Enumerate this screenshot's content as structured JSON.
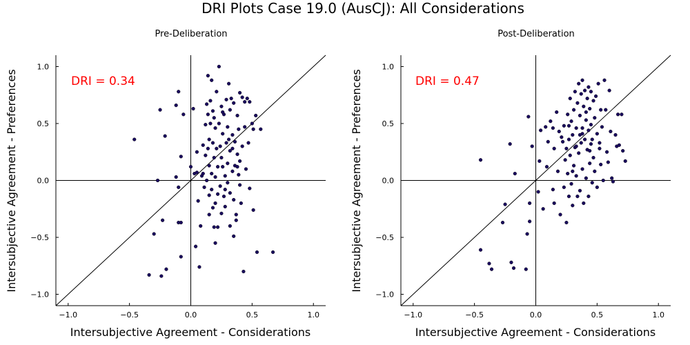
{
  "title": "DRI Plots Case 19.0 (AusCJ): All Considerations",
  "chart_data": [
    {
      "type": "scatter",
      "title": "Pre-Deliberation",
      "xlabel": "Intersubjective Agreement - Considerations",
      "ylabel": "Intersubjective Agreement - Preferences",
      "xlim": [
        -1.1,
        1.1
      ],
      "ylim": [
        -1.1,
        1.1
      ],
      "xticks": [
        -1.0,
        -0.5,
        0.0,
        0.5,
        1.0
      ],
      "yticks": [
        -1.0,
        -0.5,
        0.0,
        0.5,
        1.0
      ],
      "xtick_labels": [
        "−1.0",
        "−0.5",
        "0.0",
        "0.5",
        "1.0"
      ],
      "ytick_labels": [
        "−1.0",
        "−0.5",
        "0.0",
        "0.5",
        "1.0"
      ],
      "annotation": {
        "text": "DRI = 0.34",
        "color": "#ff0000"
      },
      "marker_color": "#1a0a5e",
      "grid": false,
      "points": [
        [
          -0.46,
          0.36
        ],
        [
          -0.25,
          0.62
        ],
        [
          -0.21,
          0.39
        ],
        [
          -0.12,
          0.66
        ],
        [
          -0.1,
          0.78
        ],
        [
          -0.12,
          0.03
        ],
        [
          -0.1,
          -0.06
        ],
        [
          -0.08,
          0.21
        ],
        [
          -0.27,
          0.0
        ],
        [
          -0.23,
          -0.35
        ],
        [
          -0.3,
          -0.47
        ],
        [
          -0.1,
          -0.37
        ],
        [
          -0.08,
          -0.37
        ],
        [
          -0.2,
          -0.78
        ],
        [
          -0.24,
          -0.84
        ],
        [
          -0.34,
          -0.83
        ],
        [
          -0.08,
          -0.67
        ],
        [
          -0.06,
          0.58
        ],
        [
          0.02,
          0.63
        ],
        [
          0.0,
          0.12
        ],
        [
          0.03,
          0.06
        ],
        [
          0.05,
          0.25
        ],
        [
          0.05,
          0.07
        ],
        [
          0.04,
          -0.58
        ],
        [
          0.07,
          -0.76
        ],
        [
          0.06,
          -0.18
        ],
        [
          0.08,
          -0.4
        ],
        [
          0.09,
          0.04
        ],
        [
          0.1,
          0.06
        ],
        [
          0.1,
          0.31
        ],
        [
          0.11,
          -0.06
        ],
        [
          0.12,
          0.49
        ],
        [
          0.12,
          0.22
        ],
        [
          0.13,
          0.0
        ],
        [
          0.13,
          0.67
        ],
        [
          0.14,
          0.92
        ],
        [
          0.14,
          0.58
        ],
        [
          0.15,
          0.36
        ],
        [
          0.15,
          0.13
        ],
        [
          0.15,
          -0.13
        ],
        [
          0.15,
          -0.3
        ],
        [
          0.16,
          0.7
        ],
        [
          0.16,
          0.5
        ],
        [
          0.17,
          0.88
        ],
        [
          0.17,
          0.06
        ],
        [
          0.17,
          -0.08
        ],
        [
          0.18,
          0.61
        ],
        [
          0.18,
          0.33
        ],
        [
          0.18,
          -0.24
        ],
        [
          0.19,
          0.2
        ],
        [
          0.19,
          -0.41
        ],
        [
          0.2,
          0.46
        ],
        [
          0.2,
          0.03
        ],
        [
          0.2,
          -0.2
        ],
        [
          0.21,
          0.78
        ],
        [
          0.21,
          0.28
        ],
        [
          0.22,
          0.12
        ],
        [
          0.22,
          -0.12
        ],
        [
          0.22,
          -0.41
        ],
        [
          0.23,
          1.0
        ],
        [
          0.23,
          0.5
        ],
        [
          0.24,
          0.3
        ],
        [
          0.24,
          -0.05
        ],
        [
          0.25,
          0.65
        ],
        [
          0.25,
          0.2
        ],
        [
          0.25,
          -0.29
        ],
        [
          0.26,
          0.41
        ],
        [
          0.26,
          0.12
        ],
        [
          0.27,
          0.58
        ],
        [
          0.27,
          -0.14
        ],
        [
          0.28,
          0.04
        ],
        [
          0.28,
          -0.23
        ],
        [
          0.29,
          0.71
        ],
        [
          0.29,
          0.33
        ],
        [
          0.3,
          0.47
        ],
        [
          0.3,
          0.15
        ],
        [
          0.3,
          -0.02
        ],
        [
          0.31,
          0.85
        ],
        [
          0.32,
          0.62
        ],
        [
          0.32,
          0.26
        ],
        [
          0.32,
          -0.11
        ],
        [
          0.32,
          -0.4
        ],
        [
          0.33,
          0.72
        ],
        [
          0.34,
          0.4
        ],
        [
          0.34,
          0.08
        ],
        [
          0.35,
          -0.17
        ],
        [
          0.35,
          -0.49
        ],
        [
          0.36,
          0.34
        ],
        [
          0.36,
          0.13
        ],
        [
          0.37,
          -0.3
        ],
        [
          0.37,
          -0.35
        ],
        [
          0.38,
          0.57
        ],
        [
          0.38,
          0.23
        ],
        [
          0.39,
          0.45
        ],
        [
          0.39,
          0.05
        ],
        [
          0.4,
          0.77
        ],
        [
          0.4,
          0.17
        ],
        [
          0.41,
          -0.2
        ],
        [
          0.42,
          0.73
        ],
        [
          0.42,
          0.3
        ],
        [
          0.43,
          -0.8
        ],
        [
          0.44,
          0.69
        ],
        [
          0.44,
          0.47
        ],
        [
          0.45,
          0.1
        ],
        [
          0.46,
          0.72
        ],
        [
          0.47,
          0.33
        ],
        [
          0.48,
          -0.07
        ],
        [
          0.48,
          0.69
        ],
        [
          0.5,
          0.5
        ],
        [
          0.51,
          0.45
        ],
        [
          0.51,
          -0.26
        ],
        [
          0.53,
          0.57
        ],
        [
          0.54,
          -0.63
        ],
        [
          0.57,
          0.45
        ],
        [
          0.67,
          -0.63
        ],
        [
          0.2,
          -0.55
        ],
        [
          0.28,
          -0.08
        ],
        [
          0.34,
          0.28
        ],
        [
          0.38,
          0.12
        ],
        [
          0.4,
          -0.04
        ],
        [
          0.26,
          0.6
        ],
        [
          0.31,
          0.36
        ],
        [
          0.19,
          0.55
        ],
        [
          0.14,
          0.28
        ],
        [
          0.35,
          0.68
        ]
      ]
    },
    {
      "type": "scatter",
      "title": "Post-Deliberation",
      "xlabel": "Intersubjective Agreement - Considerations",
      "ylabel": "Intersubjective Agreement - Preferences",
      "xlim": [
        -1.1,
        1.1
      ],
      "ylim": [
        -1.1,
        1.1
      ],
      "xticks": [
        -1.0,
        -0.5,
        0.0,
        0.5,
        1.0
      ],
      "yticks": [
        -1.0,
        -0.5,
        0.0,
        0.5,
        1.0
      ],
      "xtick_labels": [
        "−1.0",
        "−0.5",
        "0.0",
        "0.5",
        "1.0"
      ],
      "ytick_labels": [
        "−1.0",
        "−0.5",
        "0.0",
        "0.5",
        "1.0"
      ],
      "annotation": {
        "text": "DRI = 0.47",
        "color": "#ff0000"
      },
      "marker_color": "#1a0a5e",
      "grid": false,
      "points": [
        [
          -0.45,
          0.18
        ],
        [
          -0.45,
          -0.61
        ],
        [
          -0.38,
          -0.73
        ],
        [
          -0.36,
          -0.78
        ],
        [
          -0.27,
          -0.37
        ],
        [
          -0.25,
          -0.21
        ],
        [
          -0.2,
          -0.72
        ],
        [
          -0.18,
          -0.77
        ],
        [
          -0.21,
          0.32
        ],
        [
          -0.17,
          0.06
        ],
        [
          -0.08,
          -0.78
        ],
        [
          -0.07,
          -0.47
        ],
        [
          -0.05,
          -0.36
        ],
        [
          -0.05,
          -0.2
        ],
        [
          -0.06,
          0.56
        ],
        [
          -0.03,
          0.3
        ],
        [
          0.02,
          -0.1
        ],
        [
          0.03,
          0.17
        ],
        [
          0.04,
          0.44
        ],
        [
          0.06,
          -0.25
        ],
        [
          0.08,
          0.47
        ],
        [
          0.09,
          0.12
        ],
        [
          0.1,
          0.34
        ],
        [
          0.12,
          0.52
        ],
        [
          0.14,
          0.46
        ],
        [
          0.14,
          -0.08
        ],
        [
          0.15,
          0.28
        ],
        [
          0.15,
          -0.2
        ],
        [
          0.17,
          0.6
        ],
        [
          0.18,
          0.08
        ],
        [
          0.19,
          0.43
        ],
        [
          0.2,
          -0.3
        ],
        [
          0.22,
          0.34
        ],
        [
          0.23,
          0.48
        ],
        [
          0.23,
          -0.06
        ],
        [
          0.24,
          0.18
        ],
        [
          0.25,
          0.28
        ],
        [
          0.25,
          -0.37
        ],
        [
          0.26,
          0.58
        ],
        [
          0.26,
          0.06
        ],
        [
          0.27,
          0.36
        ],
        [
          0.27,
          -0.14
        ],
        [
          0.28,
          0.72
        ],
        [
          0.28,
          0.22
        ],
        [
          0.29,
          0.52
        ],
        [
          0.29,
          -0.03
        ],
        [
          0.3,
          0.4
        ],
        [
          0.3,
          -0.22
        ],
        [
          0.31,
          0.62
        ],
        [
          0.31,
          0.13
        ],
        [
          0.32,
          0.78
        ],
        [
          0.32,
          0.29
        ],
        [
          0.33,
          0.46
        ],
        [
          0.33,
          0.04
        ],
        [
          0.34,
          0.68
        ],
        [
          0.34,
          -0.14
        ],
        [
          0.35,
          0.85
        ],
        [
          0.35,
          0.24
        ],
        [
          0.36,
          0.57
        ],
        [
          0.36,
          -0.09
        ],
        [
          0.37,
          0.76
        ],
        [
          0.37,
          0.33
        ],
        [
          0.38,
          0.88
        ],
        [
          0.38,
          0.46
        ],
        [
          0.38,
          0.1
        ],
        [
          0.39,
          0.65
        ],
        [
          0.39,
          -0.2
        ],
        [
          0.4,
          0.79
        ],
        [
          0.4,
          0.36
        ],
        [
          0.41,
          0.53
        ],
        [
          0.41,
          0.02
        ],
        [
          0.42,
          0.72
        ],
        [
          0.42,
          0.27
        ],
        [
          0.43,
          0.82
        ],
        [
          0.43,
          0.44
        ],
        [
          0.43,
          -0.14
        ],
        [
          0.44,
          0.63
        ],
        [
          0.44,
          0.15
        ],
        [
          0.45,
          0.78
        ],
        [
          0.45,
          0.49
        ],
        [
          0.46,
          0.36
        ],
        [
          0.46,
          -0.02
        ],
        [
          0.47,
          0.7
        ],
        [
          0.47,
          0.2
        ],
        [
          0.48,
          0.55
        ],
        [
          0.48,
          0.08
        ],
        [
          0.49,
          0.74
        ],
        [
          0.5,
          0.41
        ],
        [
          0.5,
          -0.06
        ],
        [
          0.51,
          0.85
        ],
        [
          0.52,
          0.28
        ],
        [
          0.53,
          0.62
        ],
        [
          0.53,
          0.14
        ],
        [
          0.54,
          0.47
        ],
        [
          0.55,
          0.0
        ],
        [
          0.56,
          0.88
        ],
        [
          0.57,
          0.62
        ],
        [
          0.58,
          0.25
        ],
        [
          0.59,
          0.16
        ],
        [
          0.6,
          0.79
        ],
        [
          0.61,
          0.43
        ],
        [
          0.62,
          0.02
        ],
        [
          0.63,
          -0.01
        ],
        [
          0.65,
          0.4
        ],
        [
          0.66,
          0.3
        ],
        [
          0.67,
          0.58
        ],
        [
          0.68,
          0.31
        ],
        [
          0.7,
          0.58
        ],
        [
          0.71,
          0.26
        ],
        [
          0.73,
          0.17
        ],
        [
          0.21,
          0.38
        ],
        [
          0.33,
          0.3
        ],
        [
          0.38,
          0.41
        ],
        [
          0.45,
          0.32
        ],
        [
          0.52,
          0.33
        ],
        [
          0.27,
          0.48
        ],
        [
          0.41,
          0.6
        ],
        [
          0.36,
          0.4
        ],
        [
          0.3,
          0.08
        ],
        [
          0.44,
          0.26
        ]
      ]
    }
  ]
}
